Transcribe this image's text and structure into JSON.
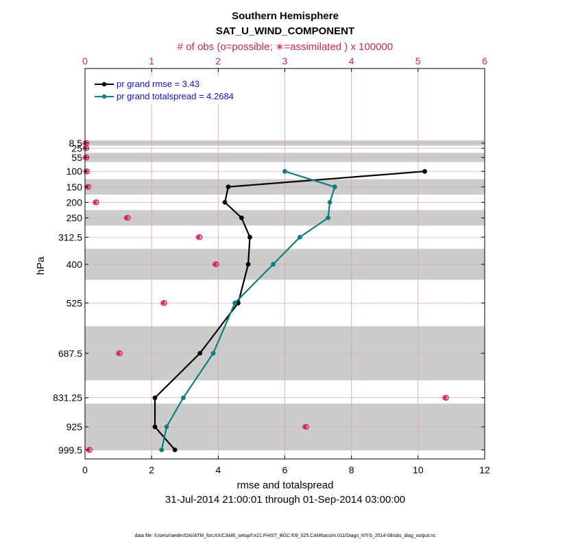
{
  "chart_data": {
    "type": "line",
    "title_line1": "Southern Hemisphere",
    "title_line2": "SAT_U_WIND_COMPONENT",
    "top_axis_label": "# of obs (o=possible; ∗=assimilated ) x 100000",
    "xlabel": "rmse and totalspread",
    "ylabel": "hPa",
    "date_range": "31-Jul-2014 21:00:01 through 01-Sep-2014 03:00:00",
    "footnote": "data file: /Users/raeder/DAI/ATM_forcXX/CAM6_setup/f.e21.FHIST_BGC.f09_025.CAM6assim.011/Diags_NTrS_2014-08/obs_diag_output.nc",
    "xlim": [
      0,
      12
    ],
    "top_xlim": [
      0,
      6
    ],
    "xticks": [
      "0",
      "2",
      "4",
      "6",
      "8",
      "10",
      "12"
    ],
    "top_xticks": [
      "0",
      "1",
      "2",
      "3",
      "4",
      "5",
      "6"
    ],
    "levels": [
      "8.5",
      "25",
      "55",
      "100",
      "150",
      "200",
      "250",
      "312.5",
      "400",
      "525",
      "687.5",
      "831.25",
      "925",
      "999.5"
    ],
    "level_values": [
      8.5,
      25,
      55,
      100,
      150,
      200,
      250,
      312.5,
      400,
      525,
      687.5,
      831.25,
      925,
      999.5
    ],
    "shaded_bands": [
      [
        0,
        17
      ],
      [
        40,
        70
      ],
      [
        125,
        175
      ],
      [
        225,
        275
      ],
      [
        350,
        450
      ],
      [
        600,
        775
      ],
      [
        850,
        1000
      ]
    ],
    "series": [
      {
        "name": "rmse",
        "legend": "pr grand rmse = 3.43",
        "color": "#000000",
        "levels": [
          100,
          150,
          200,
          250,
          312.5,
          400,
          525,
          687.5,
          831.25,
          925,
          999.5
        ],
        "values": [
          10.2,
          4.3,
          4.2,
          4.7,
          4.95,
          4.9,
          4.6,
          3.45,
          2.1,
          2.1,
          2.7
        ]
      },
      {
        "name": "totalspread",
        "legend": "pr grand totalspread = 4.2684",
        "color": "#0a7f7f",
        "levels": [
          100,
          150,
          200,
          250,
          312.5,
          400,
          525,
          687.5,
          831.25,
          925,
          999.5
        ],
        "values": [
          6.0,
          7.5,
          7.35,
          7.3,
          6.45,
          5.65,
          4.5,
          3.85,
          2.95,
          2.45,
          2.3
        ]
      }
    ],
    "obs_counts": {
      "levels": [
        8.5,
        25,
        55,
        100,
        150,
        200,
        250,
        312.5,
        400,
        525,
        687.5,
        831.25,
        925,
        999.5
      ],
      "possible": [
        0.0,
        0.0,
        0.0,
        0.01,
        0.03,
        0.15,
        0.62,
        1.7,
        1.95,
        1.17,
        0.5,
        5.4,
        3.3,
        0.05
      ],
      "assimilated": [
        0.0,
        0.0,
        0.0,
        0.01,
        0.03,
        0.15,
        0.62,
        1.7,
        1.95,
        1.17,
        0.5,
        5.4,
        3.3,
        0.05
      ]
    },
    "colors": {
      "grid": "#d9a0b0",
      "band": "#cccccc",
      "obs": "#d1205a",
      "legend_text": "#1010d0"
    }
  }
}
